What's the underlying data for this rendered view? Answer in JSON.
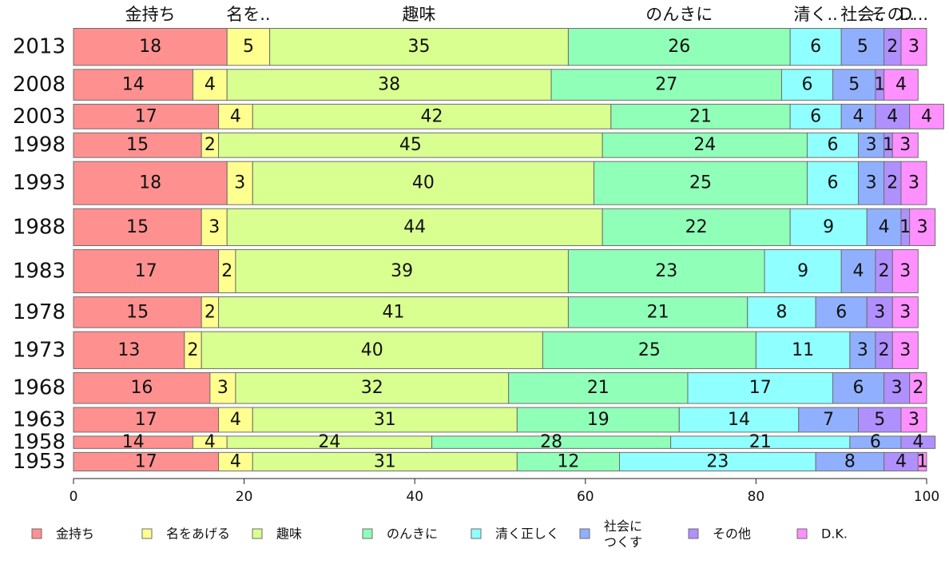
{
  "chart_data": {
    "type": "bar",
    "orientation": "horizontal",
    "stacked": true,
    "categories": [
      "2013",
      "2008",
      "2003",
      "1998",
      "1993",
      "1988",
      "1983",
      "1978",
      "1973",
      "1968",
      "1963",
      "1958",
      "1953"
    ],
    "category_weights": [
      6,
      5,
      4,
      4,
      7,
      6,
      7,
      5,
      6,
      5,
      4,
      2,
      3
    ],
    "series": [
      {
        "name": "金持ち",
        "color": "#ff9090",
        "values": [
          18,
          14,
          17,
          15,
          18,
          15,
          17,
          15,
          13,
          16,
          17,
          14,
          17
        ]
      },
      {
        "name": "名をあげる",
        "color": "#ffff90",
        "values": [
          5,
          4,
          4,
          2,
          3,
          3,
          2,
          2,
          2,
          3,
          4,
          4,
          4
        ]
      },
      {
        "name": "趣味",
        "color": "#d9ff90",
        "values": [
          35,
          38,
          42,
          45,
          40,
          44,
          39,
          41,
          40,
          32,
          31,
          24,
          31
        ]
      },
      {
        "name": "のんきに",
        "color": "#90ffb8",
        "values": [
          26,
          27,
          21,
          24,
          25,
          22,
          23,
          21,
          25,
          21,
          19,
          28,
          12
        ]
      },
      {
        "name": "清く正しく",
        "color": "#90ffff",
        "values": [
          6,
          6,
          6,
          6,
          6,
          9,
          9,
          8,
          11,
          17,
          14,
          21,
          23
        ]
      },
      {
        "name": "社会に\nつくす",
        "color": "#90b0ff",
        "values": [
          5,
          5,
          4,
          3,
          3,
          4,
          4,
          6,
          3,
          6,
          7,
          6,
          8
        ]
      },
      {
        "name": "その他",
        "color": "#b090ff",
        "values": [
          2,
          1,
          4,
          1,
          2,
          1,
          2,
          3,
          2,
          3,
          5,
          4,
          4
        ]
      },
      {
        "name": "D.K.",
        "color": "#ff90ff",
        "values": [
          3,
          4,
          4,
          3,
          3,
          3,
          3,
          3,
          3,
          2,
          3,
          0,
          1
        ]
      }
    ],
    "top_labels": [
      "金持ち",
      "名を..",
      "趣味",
      "のんきに",
      "清く..",
      "社会..",
      "その..",
      "D..."
    ],
    "xlim": [
      0,
      100
    ],
    "xticks": [
      0,
      20,
      40,
      60,
      80,
      100
    ],
    "legend_position": "bottom",
    "grid": false
  }
}
